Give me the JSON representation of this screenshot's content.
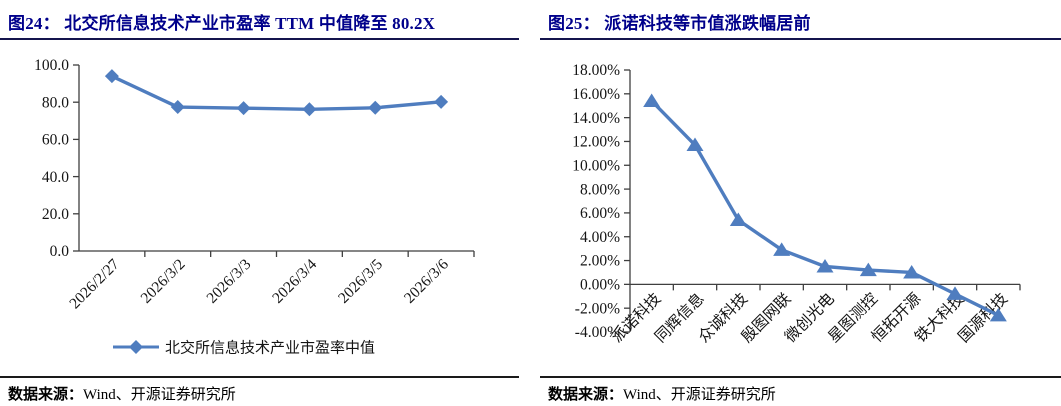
{
  "colors": {
    "title_navy": "#00008B",
    "series_blue": "#4f7dbf",
    "axis_gray": "#3f3f3f"
  },
  "source": {
    "label": "数据来源：",
    "text": "Wind、开源证券研究所"
  },
  "chart_data": [
    {
      "type": "line",
      "title": "图24： 北交所信息技术产业市盈率 TTM 中值降至 80.2X",
      "categories": [
        "2026/2/27",
        "2026/3/2",
        "2026/3/3",
        "2026/3/4",
        "2026/3/5",
        "2026/3/6"
      ],
      "series": [
        {
          "name": "北交所信息技术产业市盈率中值",
          "values": [
            94.0,
            77.4,
            76.8,
            76.2,
            77.0,
            80.2
          ]
        }
      ],
      "ylim": [
        0,
        100
      ],
      "ytick_step": 20,
      "ytick_format": "fixed1",
      "ytick_labels": [
        "0.0",
        "20.0",
        "40.0",
        "60.0",
        "80.0",
        "100.0"
      ],
      "marker": "diamond",
      "legend_position": "bottom",
      "grid": false,
      "line_color": "#4f7dbf"
    },
    {
      "type": "line",
      "title": "图25： 派诺科技等市值涨跌幅居前",
      "categories": [
        "派诺科技",
        "同辉信息",
        "众诚科技",
        "殷图网联",
        "微创光电",
        "星图测控",
        "恒拓开源",
        "铁大科技",
        "国源科技"
      ],
      "series": [
        {
          "values": [
            15.4,
            11.7,
            5.4,
            2.9,
            1.5,
            1.2,
            1.0,
            -0.8,
            -2.6
          ]
        }
      ],
      "ylim": [
        -4,
        18
      ],
      "ytick_step": 2,
      "ytick_format": "pct2",
      "ytick_labels": [
        "-4.00%",
        "-2.00%",
        "0.00%",
        "2.00%",
        "4.00%",
        "6.00%",
        "8.00%",
        "10.00%",
        "12.00%",
        "14.00%",
        "16.00%",
        "18.00%"
      ],
      "marker": "triangle",
      "legend_position": "none",
      "grid": false,
      "line_color": "#4f7dbf"
    }
  ]
}
